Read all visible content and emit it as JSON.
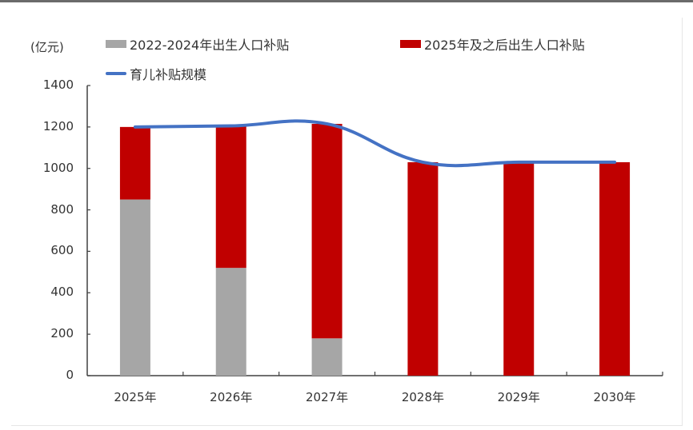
{
  "chart_data": {
    "type": "bar",
    "subtype": "stacked bar with line overlay",
    "title": "",
    "ylabel": "(亿元)",
    "xlabel": "",
    "ylim": [
      0,
      1400
    ],
    "yticks": [
      0,
      200,
      400,
      600,
      800,
      1000,
      1200,
      1400
    ],
    "grid": false,
    "legend_position": "top",
    "categories": [
      "2025年",
      "2026年",
      "2027年",
      "2028年",
      "2029年",
      "2030年"
    ],
    "series": [
      {
        "name": "2022-2024年出生人口补贴",
        "type": "bar",
        "stack": "total",
        "color": "#a6a6a6",
        "values": [
          850,
          520,
          180,
          0,
          0,
          0
        ]
      },
      {
        "name": "2025年及之后出生人口补贴",
        "type": "bar",
        "stack": "total",
        "color": "#c00000",
        "values": [
          350,
          685,
          1035,
          1030,
          1030,
          1030
        ]
      },
      {
        "name": "育儿补贴规模",
        "type": "line",
        "color": "#4472c4",
        "values": [
          1200,
          1205,
          1215,
          1030,
          1030,
          1030
        ]
      }
    ]
  },
  "labels": {
    "unit": "(亿元)",
    "legend": [
      "2022-2024年出生人口补贴",
      "2025年及之后出生人口补贴",
      "育儿补贴规模"
    ]
  }
}
